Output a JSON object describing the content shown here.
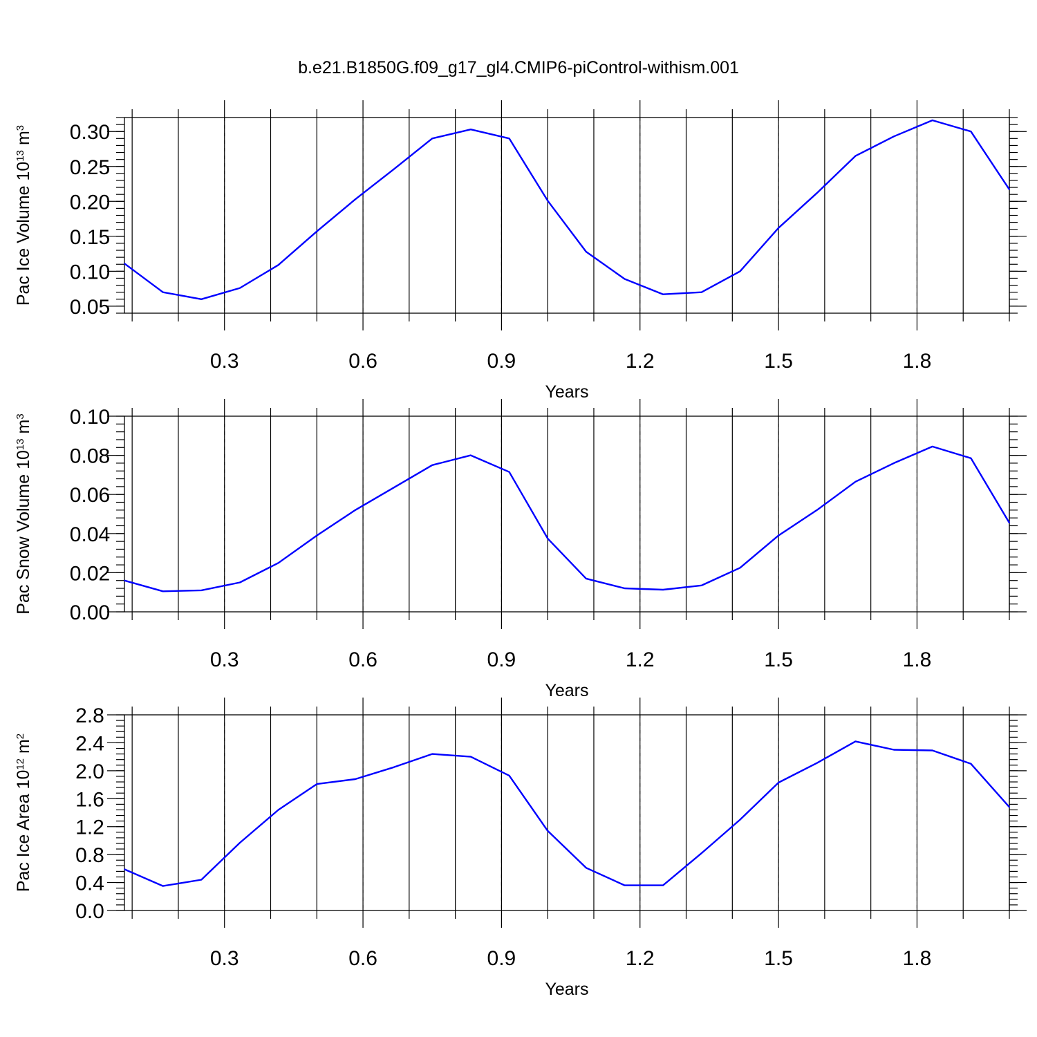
{
  "figure": {
    "title": "b.e21.B1850G.f09_g17_gl4.CMIP6-piControl-withism.001",
    "line_color": "#0000ff"
  },
  "chart_data": [
    {
      "type": "line",
      "title": "b.e21.B1850G.f09_g17_gl4.CMIP6-piControl-withism.001",
      "xlabel": "Years",
      "ylabel": "Pac Ice Volume 10",
      "ylabel_exp": "13",
      "ylabel_unit": " m",
      "ylabel_unit_exp": "3",
      "xlim": [
        0.0833,
        2.0
      ],
      "ylim": [
        0.04,
        0.32
      ],
      "xticks": [
        "0.3",
        "0.6",
        "0.9",
        "1.2",
        "1.5",
        "1.8"
      ],
      "yticks": [
        "0.05",
        "0.10",
        "0.15",
        "0.20",
        "0.25",
        "0.30"
      ],
      "x": [
        0.0833,
        0.1667,
        0.25,
        0.3333,
        0.4167,
        0.5,
        0.5833,
        0.6667,
        0.75,
        0.8333,
        0.9167,
        1.0,
        1.0833,
        1.1667,
        1.25,
        1.3333,
        1.4167,
        1.5,
        1.5833,
        1.6667,
        1.75,
        1.8333,
        1.9167,
        2.0
      ],
      "values": [
        0.111,
        0.07,
        0.06,
        0.076,
        0.109,
        0.157,
        0.203,
        0.246,
        0.29,
        0.303,
        0.29,
        0.201,
        0.128,
        0.089,
        0.067,
        0.07,
        0.1,
        0.162,
        0.212,
        0.265,
        0.293,
        0.316,
        0.3,
        0.217
      ],
      "grid": "x-dashed"
    },
    {
      "type": "line",
      "xlabel": "Years",
      "ylabel": "Pac Snow Volume 10",
      "ylabel_exp": "13",
      "ylabel_unit": " m",
      "ylabel_unit_exp": "3",
      "xlim": [
        0.0833,
        2.0
      ],
      "ylim": [
        0.0,
        0.1
      ],
      "xticks": [
        "0.3",
        "0.6",
        "0.9",
        "1.2",
        "1.5",
        "1.8"
      ],
      "yticks": [
        "0.00",
        "0.02",
        "0.04",
        "0.06",
        "0.08",
        "0.10"
      ],
      "x": [
        0.0833,
        0.1667,
        0.25,
        0.3333,
        0.4167,
        0.5,
        0.5833,
        0.6667,
        0.75,
        0.8333,
        0.9167,
        1.0,
        1.0833,
        1.1667,
        1.25,
        1.3333,
        1.4167,
        1.5,
        1.5833,
        1.6667,
        1.75,
        1.8333,
        1.9167,
        2.0
      ],
      "values": [
        0.016,
        0.0105,
        0.011,
        0.015,
        0.025,
        0.039,
        0.052,
        0.0635,
        0.075,
        0.08,
        0.0715,
        0.0375,
        0.017,
        0.012,
        0.0113,
        0.0135,
        0.0225,
        0.039,
        0.052,
        0.0665,
        0.076,
        0.0845,
        0.0785,
        0.0455
      ],
      "grid": "x-dashed"
    },
    {
      "type": "line",
      "xlabel": "Years",
      "ylabel": "Pac Ice Area 10",
      "ylabel_exp": "12",
      "ylabel_unit": " m",
      "ylabel_unit_exp": "2",
      "xlim": [
        0.0833,
        2.0
      ],
      "ylim": [
        0.0,
        2.8
      ],
      "xticks": [
        "0.3",
        "0.6",
        "0.9",
        "1.2",
        "1.5",
        "1.8"
      ],
      "yticks": [
        "0.0",
        "0.4",
        "0.8",
        "1.2",
        "1.6",
        "2.0",
        "2.4",
        "2.8"
      ],
      "x": [
        0.0833,
        0.1667,
        0.25,
        0.3333,
        0.4167,
        0.5,
        0.5833,
        0.6667,
        0.75,
        0.8333,
        0.9167,
        1.0,
        1.0833,
        1.1667,
        1.25,
        1.3333,
        1.4167,
        1.5,
        1.5833,
        1.6667,
        1.75,
        1.8333,
        1.9167,
        2.0
      ],
      "values": [
        0.59,
        0.35,
        0.44,
        0.97,
        1.44,
        1.81,
        1.88,
        2.05,
        2.24,
        2.2,
        1.93,
        1.14,
        0.61,
        0.36,
        0.36,
        0.82,
        1.3,
        1.83,
        2.11,
        2.42,
        2.3,
        2.29,
        2.1,
        1.48
      ],
      "grid": "x-dashed"
    }
  ]
}
